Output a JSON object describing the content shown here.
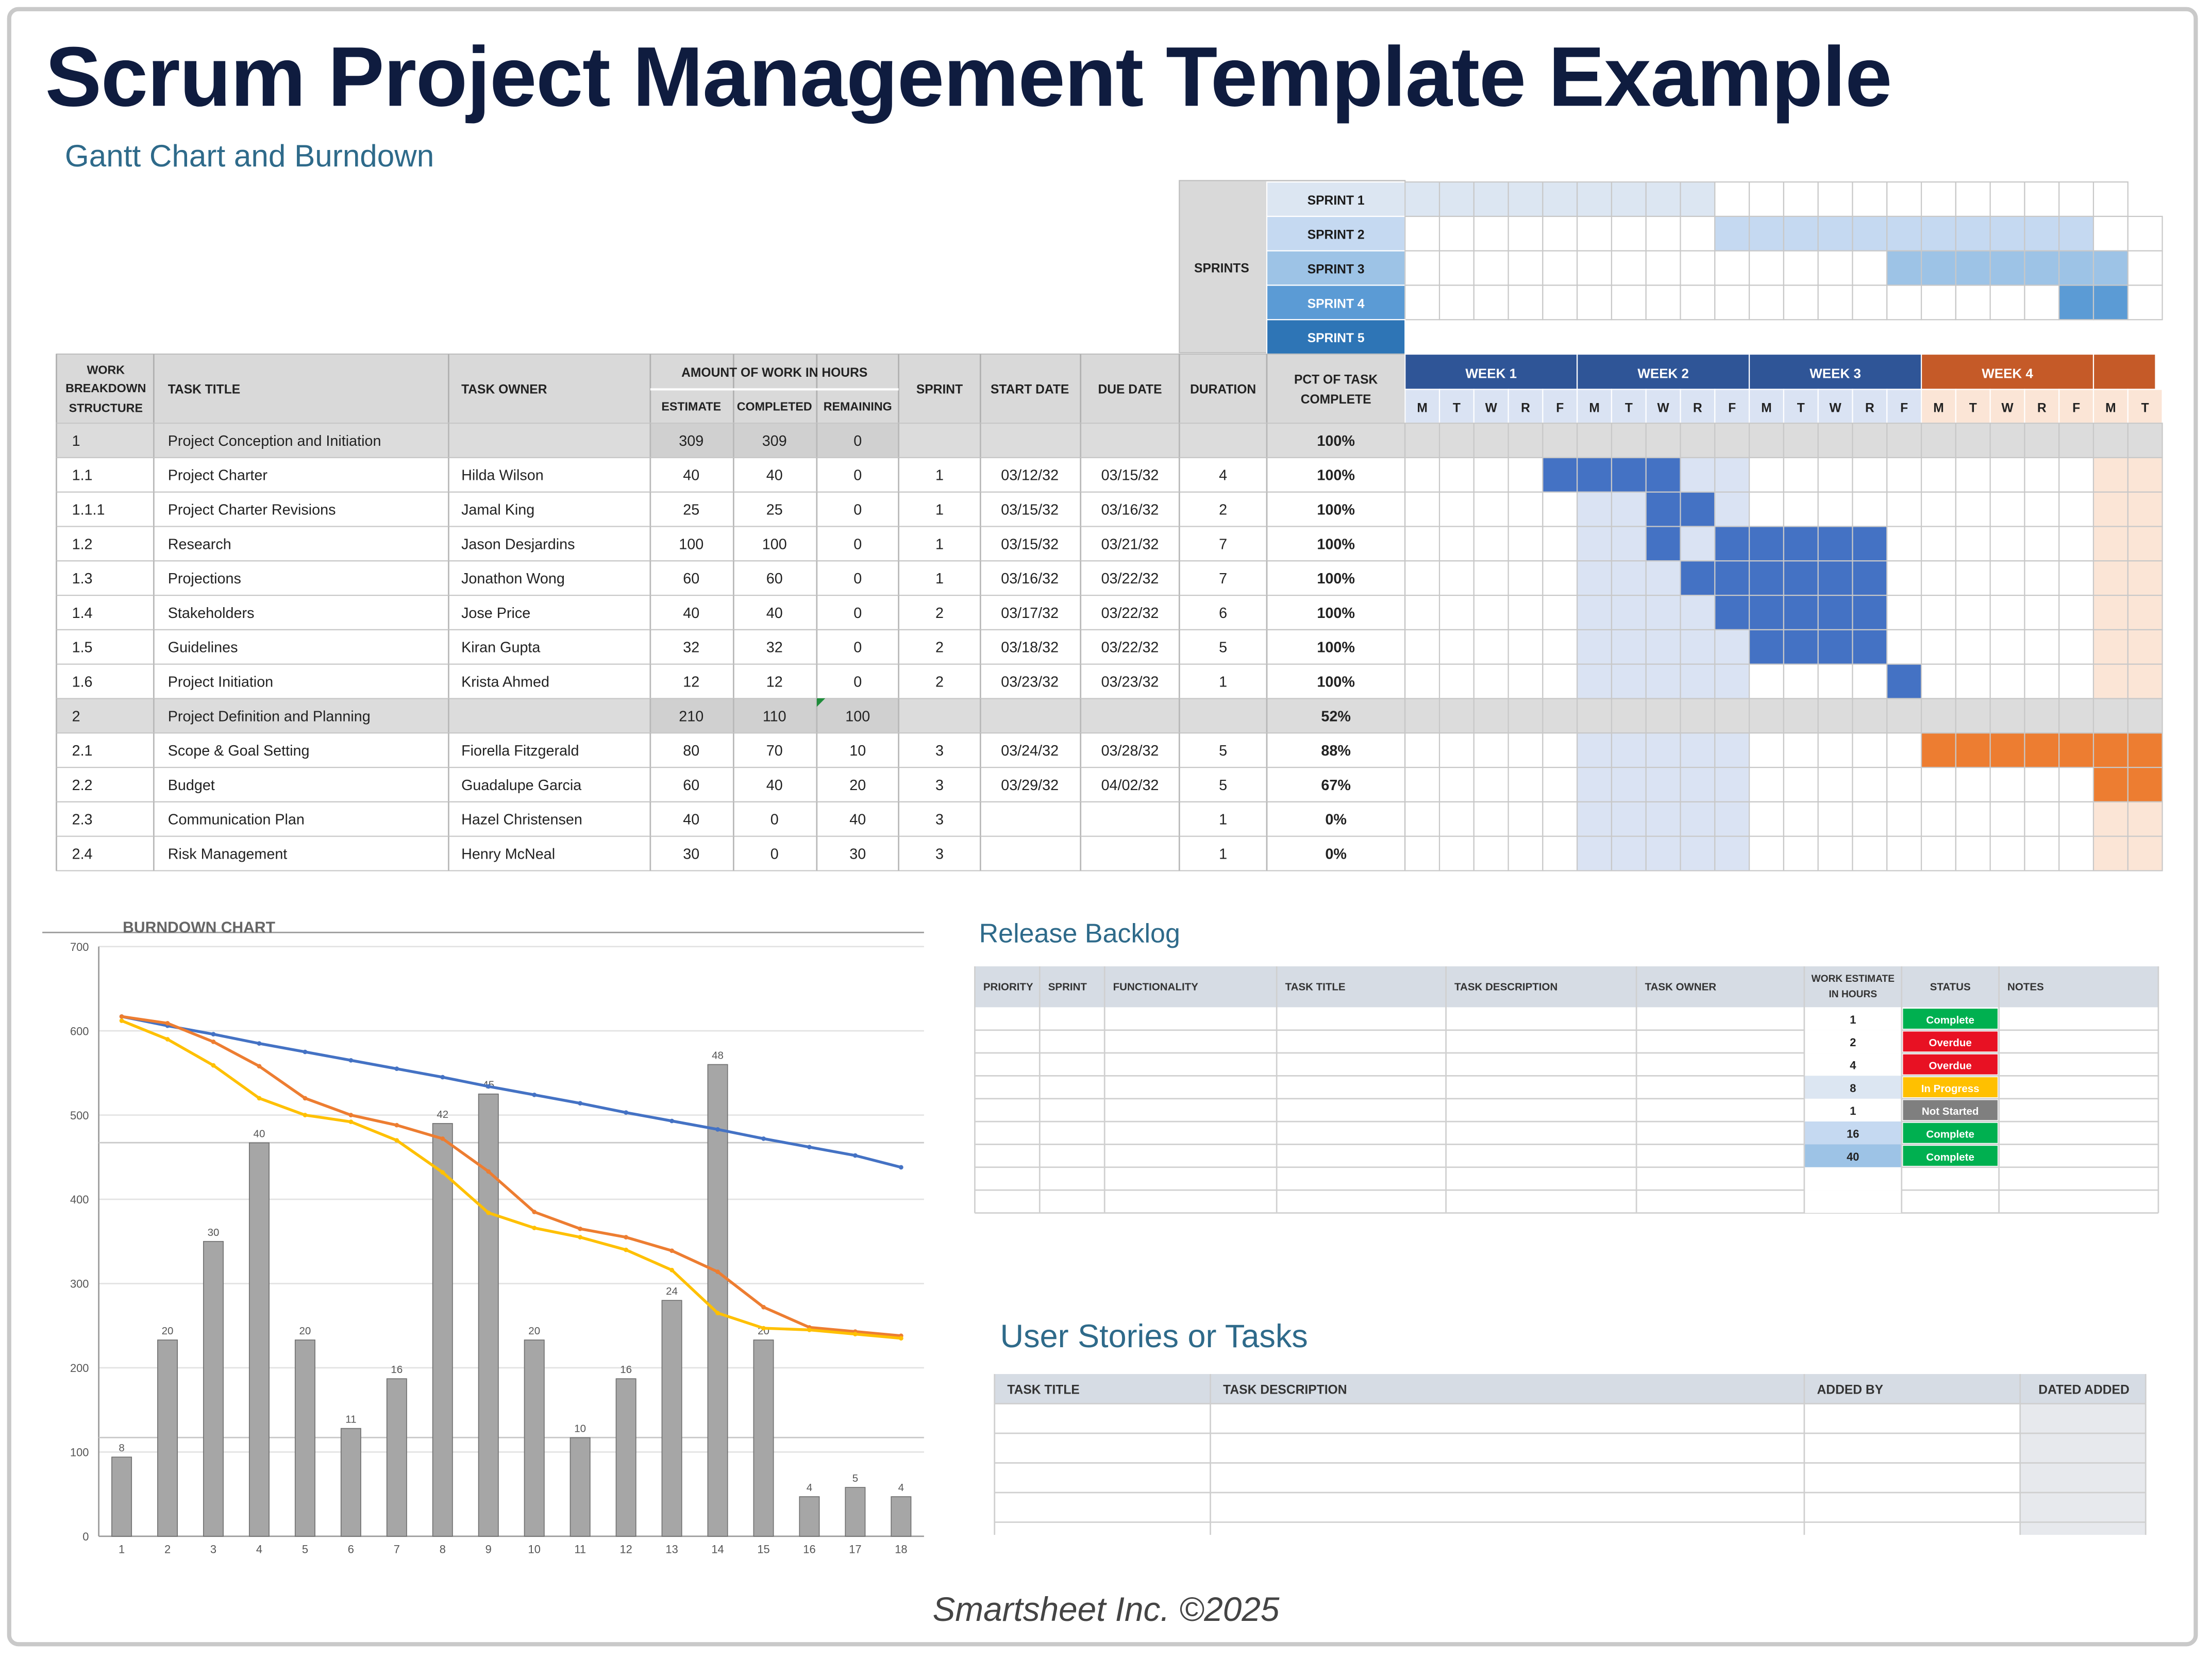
{
  "page": {
    "title": "Scrum Project Management Template Example",
    "subtitle": "Gantt Chart and Burndown",
    "footer": "Smartsheet Inc. ©2025"
  },
  "colors": {
    "header_gray": "#d9d9d9",
    "sprint_blue_1": "#dce6f2",
    "sprint_blue_2": "#c5d9f1",
    "sprint_blue_3": "#9dc3e6",
    "sprint_blue_4": "#5b9bd5",
    "sprint_blue_5": "#2e75b6",
    "week_blue": "#2f5597",
    "week_orange": "#c55a28",
    "gantt_blue": "#4472c4",
    "gantt_light": "#dae3f3",
    "gantt_orange": "#ed7d31",
    "gantt_orange_light": "#fbe5d6"
  },
  "gantt": {
    "sprints_label": "SPRINTS",
    "sprints": [
      "SPRINT 1",
      "SPRINT 2",
      "SPRINT 3",
      "SPRINT 4",
      "SPRINT 5"
    ],
    "headers": {
      "wbs": [
        "WORK",
        "BREAKDOWN",
        "STRUCTURE"
      ],
      "task_title": "TASK TITLE",
      "task_owner": "TASK OWNER",
      "work_group": "AMOUNT OF WORK IN HOURS",
      "estimate": "ESTIMATE",
      "completed": "COMPLETED",
      "remaining": "REMAINING",
      "sprint": "SPRINT",
      "start_date": "START DATE",
      "due_date": "DUE DATE",
      "duration": "DURATION",
      "pct": [
        "PCT OF TASK",
        "COMPLETE"
      ]
    },
    "weeks": [
      "WEEK 1",
      "WEEK 2",
      "WEEK 3",
      "WEEK 4"
    ],
    "day_letters": [
      "M",
      "T",
      "W",
      "R",
      "F",
      "M",
      "T",
      "W",
      "R",
      "F",
      "M",
      "T",
      "W",
      "R",
      "F",
      "M",
      "T",
      "W",
      "R",
      "F",
      "M",
      "T"
    ],
    "rows": [
      {
        "wbs": "1",
        "title": "Project Conception and Initiation",
        "owner": "",
        "estimate": "309",
        "completed": "309",
        "remaining": "0",
        "sprint": "",
        "start": "",
        "due": "",
        "duration": "",
        "pct": "100%",
        "group": true
      },
      {
        "wbs": "1.1",
        "title": "Project Charter",
        "owner": "Hilda Wilson",
        "estimate": "40",
        "completed": "40",
        "remaining": "0",
        "sprint": "1",
        "start": "03/12/32",
        "due": "03/15/32",
        "duration": "4",
        "pct": "100%",
        "group": false
      },
      {
        "wbs": "1.1.1",
        "title": "Project Charter Revisions",
        "owner": "Jamal King",
        "estimate": "25",
        "completed": "25",
        "remaining": "0",
        "sprint": "1",
        "start": "03/15/32",
        "due": "03/16/32",
        "duration": "2",
        "pct": "100%",
        "group": false
      },
      {
        "wbs": "1.2",
        "title": "Research",
        "owner": "Jason Desjardins",
        "estimate": "100",
        "completed": "100",
        "remaining": "0",
        "sprint": "1",
        "start": "03/15/32",
        "due": "03/21/32",
        "duration": "7",
        "pct": "100%",
        "group": false
      },
      {
        "wbs": "1.3",
        "title": "Projections",
        "owner": "Jonathon Wong",
        "estimate": "60",
        "completed": "60",
        "remaining": "0",
        "sprint": "1",
        "start": "03/16/32",
        "due": "03/22/32",
        "duration": "7",
        "pct": "100%",
        "group": false
      },
      {
        "wbs": "1.4",
        "title": "Stakeholders",
        "owner": "Jose Price",
        "estimate": "40",
        "completed": "40",
        "remaining": "0",
        "sprint": "2",
        "start": "03/17/32",
        "due": "03/22/32",
        "duration": "6",
        "pct": "100%",
        "group": false
      },
      {
        "wbs": "1.5",
        "title": "Guidelines",
        "owner": "Kiran Gupta",
        "estimate": "32",
        "completed": "32",
        "remaining": "0",
        "sprint": "2",
        "start": "03/18/32",
        "due": "03/22/32",
        "duration": "5",
        "pct": "100%",
        "group": false
      },
      {
        "wbs": "1.6",
        "title": "Project Initiation",
        "owner": "Krista Ahmed",
        "estimate": "12",
        "completed": "12",
        "remaining": "0",
        "sprint": "2",
        "start": "03/23/32",
        "due": "03/23/32",
        "duration": "1",
        "pct": "100%",
        "group": false
      },
      {
        "wbs": "2",
        "title": "Project Definition and Planning",
        "owner": "",
        "estimate": "210",
        "completed": "110",
        "remaining": "100",
        "sprint": "",
        "start": "",
        "due": "",
        "duration": "",
        "pct": "52%",
        "group": true
      },
      {
        "wbs": "2.1",
        "title": "Scope & Goal Setting",
        "owner": "Fiorella Fitzgerald",
        "estimate": "80",
        "completed": "70",
        "remaining": "10",
        "sprint": "3",
        "start": "03/24/32",
        "due": "03/28/32",
        "duration": "5",
        "pct": "88%",
        "group": false
      },
      {
        "wbs": "2.2",
        "title": "Budget",
        "owner": "Guadalupe Garcia",
        "estimate": "60",
        "completed": "40",
        "remaining": "20",
        "sprint": "3",
        "start": "03/29/32",
        "due": "04/02/32",
        "duration": "5",
        "pct": "67%",
        "group": false
      },
      {
        "wbs": "2.3",
        "title": "Communication Plan",
        "owner": "Hazel Christensen",
        "estimate": "40",
        "completed": "0",
        "remaining": "40",
        "sprint": "3",
        "start": "",
        "due": "",
        "duration": "1",
        "pct": "0%",
        "group": false
      },
      {
        "wbs": "2.4",
        "title": "Risk Management",
        "owner": "Henry McNeal",
        "estimate": "30",
        "completed": "0",
        "remaining": "30",
        "sprint": "3",
        "start": "",
        "due": "",
        "duration": "1",
        "pct": "0%",
        "group": false
      }
    ]
  },
  "burndown": {
    "title": "BURNDOWN CHART"
  },
  "chart_data": {
    "type": "bar",
    "title": "BURNDOWN CHART",
    "categories": [
      "1",
      "2",
      "3",
      "4",
      "5",
      "6",
      "7",
      "8",
      "9",
      "10",
      "11",
      "12",
      "13",
      "14",
      "15",
      "16",
      "17",
      "18"
    ],
    "ylim": [
      0,
      700
    ],
    "yticks": [
      "0",
      "100",
      "200",
      "300",
      "400",
      "500",
      "600",
      "700"
    ],
    "grid": true,
    "bar_labels": [
      "8",
      "20",
      "30",
      "40",
      "20",
      "11",
      "16",
      "42",
      "45",
      "20",
      "10",
      "16",
      "24",
      "48",
      "20",
      "4",
      "5",
      "4"
    ],
    "series": [
      {
        "type": "bar",
        "color": "#a6a6a6",
        "values": [
          94,
          233,
          350,
          467,
          233,
          128,
          187,
          490,
          525,
          233,
          117,
          187,
          280,
          560,
          233,
          47,
          58,
          47
        ]
      },
      {
        "type": "line",
        "color": "#4472c4",
        "values": [
          617,
          606,
          596,
          585,
          575,
          565,
          555,
          545,
          534,
          524,
          514,
          503,
          493,
          483,
          472,
          462,
          452,
          438
        ]
      },
      {
        "type": "line",
        "color": "#ed7d31",
        "values": [
          617,
          609,
          587,
          558,
          520,
          500,
          488,
          472,
          433,
          385,
          365,
          355,
          339,
          314,
          272,
          248,
          243,
          238
        ]
      },
      {
        "type": "line",
        "color": "#ffc000",
        "values": [
          612,
          590,
          559,
          520,
          500,
          492,
          470,
          432,
          384,
          366,
          355,
          340,
          316,
          265,
          247,
          245,
          240,
          235
        ]
      }
    ]
  },
  "backlog": {
    "title": "Release Backlog",
    "headers": [
      "PRIORITY",
      "SPRINT",
      "FUNCTIONALITY",
      "TASK TITLE",
      "TASK DESCRIPTION",
      "TASK OWNER",
      "WORK ESTIMATE IN HOURS",
      "STATUS",
      "NOTES"
    ],
    "rows": [
      {
        "estimate": "1",
        "status": "Complete",
        "status_color": "#00b050"
      },
      {
        "estimate": "2",
        "status": "Overdue",
        "status_color": "#e81123"
      },
      {
        "estimate": "4",
        "status": "Overdue",
        "status_color": "#e81123"
      },
      {
        "estimate": "8",
        "status": "In Progress",
        "status_color": "#ffc000"
      },
      {
        "estimate": "1",
        "status": "Not Started",
        "status_color": "#7f7f7f"
      },
      {
        "estimate": "16",
        "status": "Complete",
        "status_color": "#00b050"
      },
      {
        "estimate": "40",
        "status": "Complete",
        "status_color": "#00b050"
      },
      {
        "estimate": "",
        "status": "",
        "status_color": ""
      },
      {
        "estimate": "",
        "status": "",
        "status_color": ""
      }
    ]
  },
  "stories": {
    "title": "User Stories or Tasks",
    "headers": [
      "TASK TITLE",
      "TASK DESCRIPTION",
      "ADDED BY",
      "DATED ADDED"
    ]
  }
}
